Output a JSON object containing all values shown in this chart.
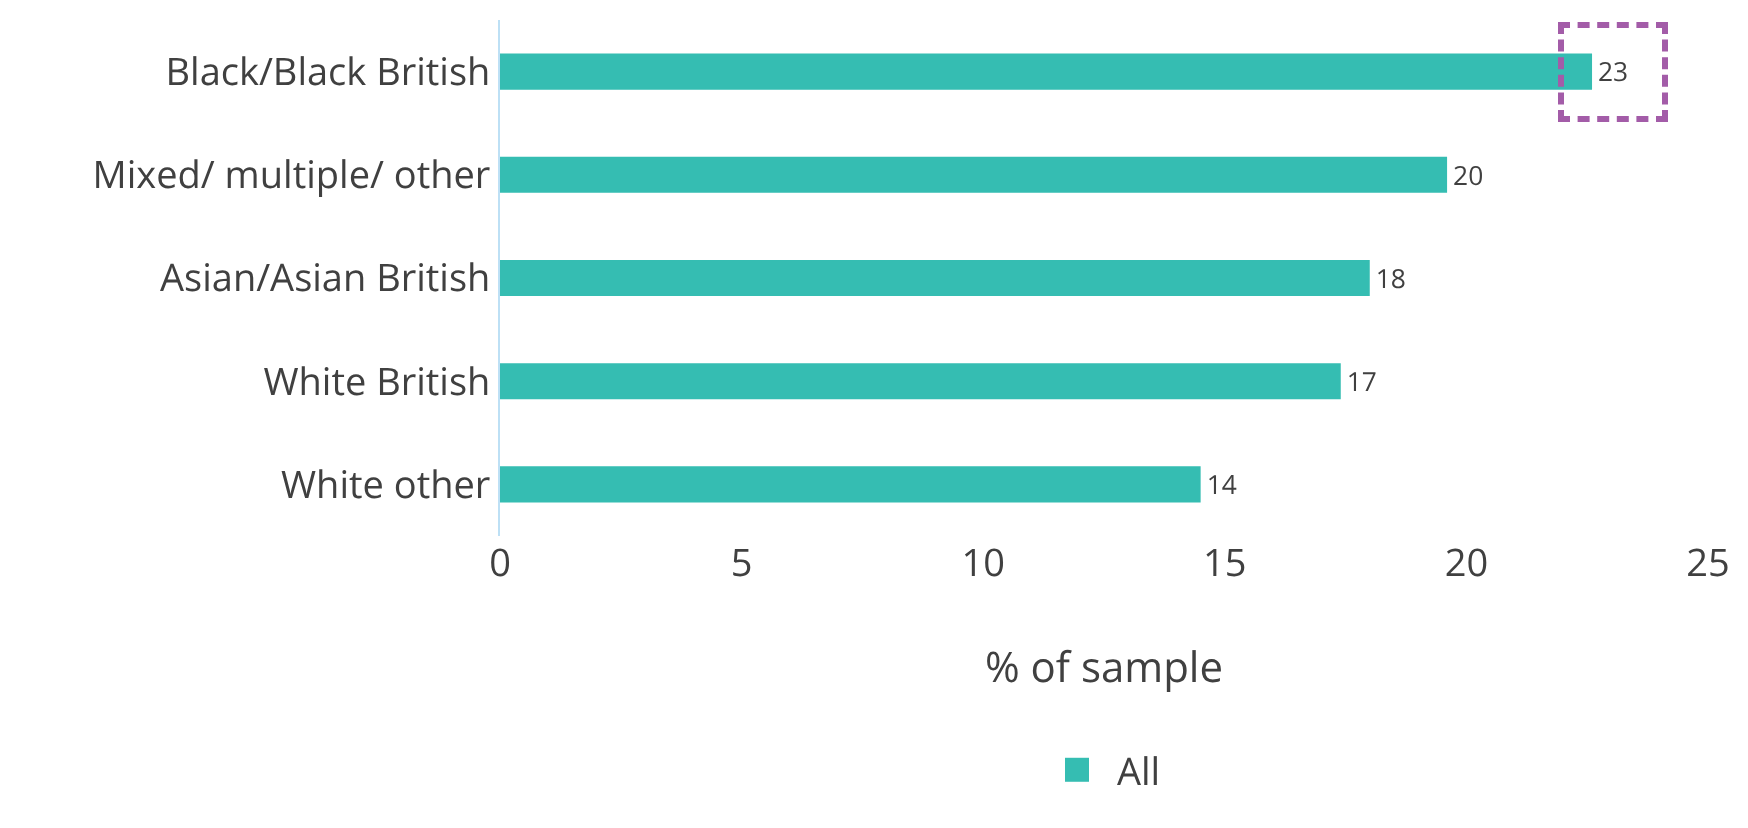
{
  "chart_data": {
    "type": "bar",
    "orientation": "horizontal",
    "categories": [
      "Black/Black British",
      "Mixed/ multiple/ other",
      "Asian/Asian British",
      "White British",
      "White other"
    ],
    "series": [
      {
        "name": "All",
        "color": "#35bdb2",
        "values": [
          22.6,
          19.6,
          18.0,
          17.4,
          14.5
        ],
        "value_labels": [
          "23",
          "20",
          "18",
          "17",
          "14"
        ]
      }
    ],
    "xlabel": "% of sample",
    "xlim": [
      0,
      25
    ],
    "xticks": [
      0,
      5,
      10,
      15,
      20,
      25
    ],
    "grid": false,
    "legend": "bottom"
  }
}
